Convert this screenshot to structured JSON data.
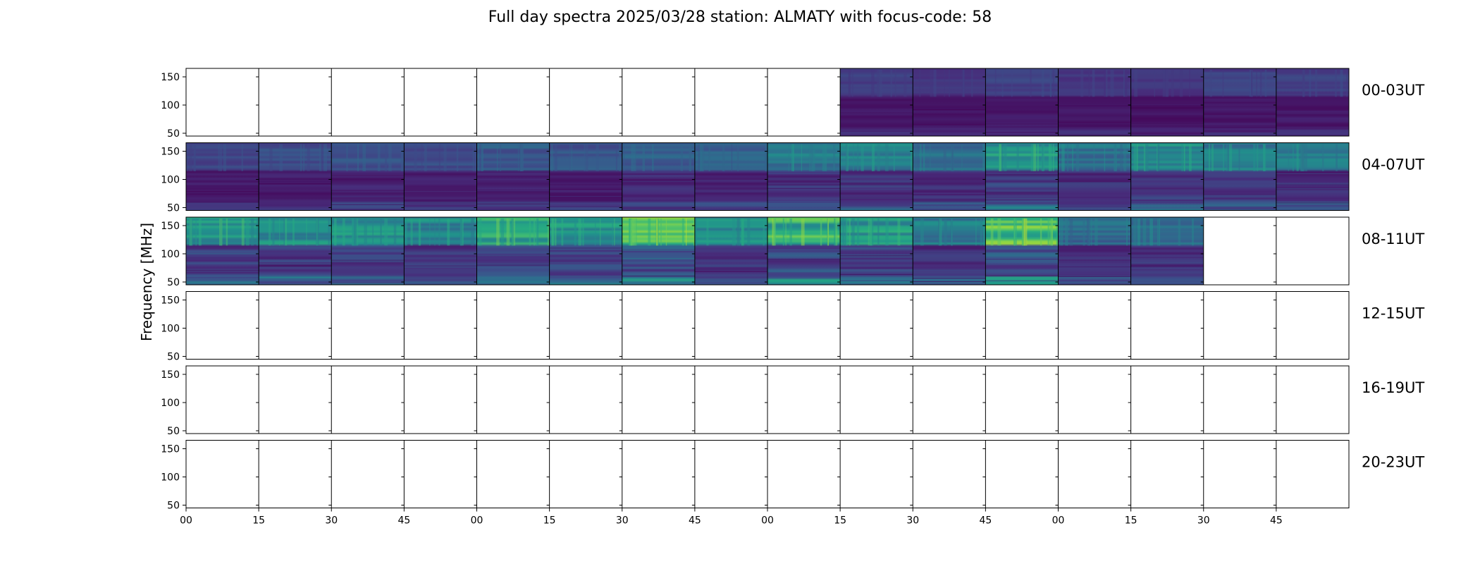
{
  "chart_data": {
    "type": "heatmap",
    "title": "Full day spectra 2025/03/28 station: ALMATY with focus-code: 58",
    "ylabel": "Frequency [MHz]",
    "xlabel": "",
    "ylim": [
      45,
      165
    ],
    "y_ticks": [
      50,
      100,
      150
    ],
    "x_tick_labels": [
      "00",
      "15",
      "30",
      "45",
      "00",
      "15",
      "30",
      "45",
      "00",
      "15",
      "30",
      "45",
      "00",
      "15",
      "30",
      "45"
    ],
    "colormap": "viridis",
    "colors": [
      "#440154",
      "#472d7b",
      "#3b528b",
      "#2c728e",
      "#21918c",
      "#28ae80",
      "#5ec962",
      "#addc30",
      "#fde725"
    ],
    "panels_per_row": 16,
    "rows": [
      {
        "label": "00-03UT",
        "cells": [
          0,
          0,
          0,
          0,
          0,
          0,
          0,
          0,
          0,
          0.18,
          0.16,
          0.2,
          0.17,
          0.16,
          0.19,
          0.2
        ]
      },
      {
        "label": "04-07UT",
        "cells": [
          0.22,
          0.24,
          0.26,
          0.24,
          0.3,
          0.28,
          0.32,
          0.3,
          0.42,
          0.45,
          0.36,
          0.55,
          0.4,
          0.5,
          0.45,
          0.42
        ]
      },
      {
        "label": "08-11UT",
        "cells": [
          0.55,
          0.5,
          0.52,
          0.48,
          0.62,
          0.55,
          0.75,
          0.48,
          0.66,
          0.55,
          0.42,
          0.72,
          0.35,
          0.4,
          0,
          0
        ]
      },
      {
        "label": "12-15UT",
        "cells": [
          0,
          0,
          0,
          0,
          0,
          0,
          0,
          0,
          0,
          0,
          0,
          0,
          0,
          0,
          0,
          0
        ]
      },
      {
        "label": "16-19UT",
        "cells": [
          0,
          0,
          0,
          0,
          0,
          0,
          0,
          0,
          0,
          0,
          0,
          0,
          0,
          0,
          0,
          0
        ]
      },
      {
        "label": "20-23UT",
        "cells": [
          0,
          0,
          0,
          0,
          0,
          0,
          0,
          0,
          0,
          0,
          0,
          0,
          0,
          0,
          0,
          0
        ]
      }
    ]
  }
}
